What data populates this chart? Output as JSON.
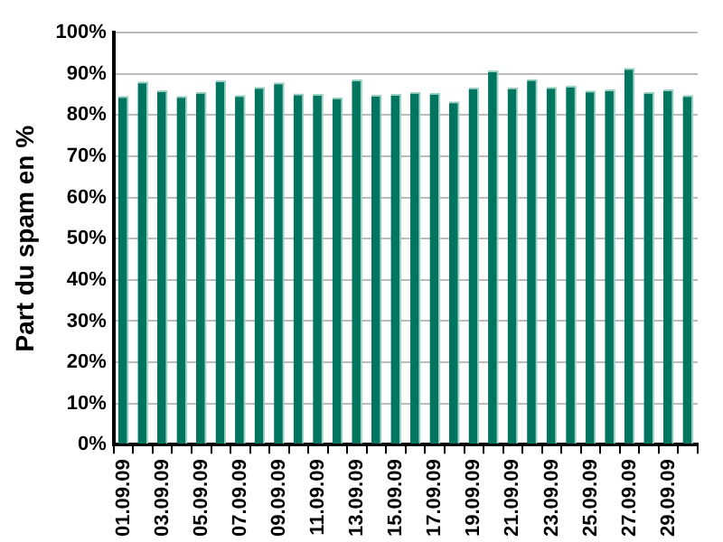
{
  "chart_data": {
    "type": "bar",
    "ylabel": "Part du spam en %",
    "categories": [
      "01.09.09",
      null,
      "03.09.09",
      null,
      "05.09.09",
      null,
      "07.09.09",
      null,
      "09.09.09",
      null,
      "11.09.09",
      null,
      "13.09.09",
      null,
      "15.09.09",
      null,
      "17.09.09",
      null,
      "19.09.09",
      null,
      "21.09.09",
      null,
      "23.09.09",
      null,
      "25.09.09",
      null,
      "27.09.09",
      null,
      "29.09.09",
      null
    ],
    "values": [
      84.6,
      88.1,
      86.0,
      84.6,
      85.6,
      88.4,
      84.8,
      86.8,
      87.9,
      85.2,
      85.1,
      84.3,
      88.6,
      84.9,
      85.1,
      85.6,
      85.4,
      83.3,
      86.7,
      90.8,
      86.7,
      88.7,
      86.8,
      87.1,
      85.9,
      86.2,
      91.4,
      85.6,
      86.2,
      84.8
    ],
    "color": "#007560",
    "ylim": [
      0,
      100
    ],
    "yticks": [
      {
        "value": 0,
        "label": "0%"
      },
      {
        "value": 10,
        "label": "10%"
      },
      {
        "value": 20,
        "label": "20%"
      },
      {
        "value": 30,
        "label": "30%"
      },
      {
        "value": 40,
        "label": "40%"
      },
      {
        "value": 50,
        "label": "50%"
      },
      {
        "value": 60,
        "label": "60%"
      },
      {
        "value": 70,
        "label": "70%"
      },
      {
        "value": 80,
        "label": "80%"
      },
      {
        "value": 90,
        "label": "90%"
      },
      {
        "value": 100,
        "label": "100%"
      }
    ],
    "grid": "y",
    "legend": false
  }
}
